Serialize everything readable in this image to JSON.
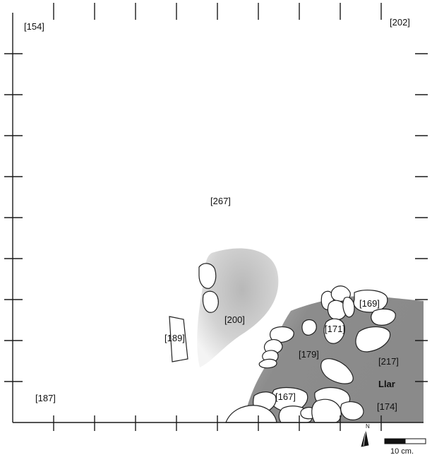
{
  "labels": {
    "ue154": "[154]",
    "ue202": "[202]",
    "ue267": "[267]",
    "ue200": "[200]",
    "ue189": "[189]",
    "ue187": "[187]",
    "ue169": "[169]",
    "ue171": "[171]",
    "ue179": "[179]",
    "ue217": "[217]",
    "ue167": "[167]",
    "ue174": "[174]",
    "llar": "Llar"
  },
  "scale_bar": {
    "label": "10 cm."
  },
  "north_arrow": {
    "icon": "north-arrow-icon",
    "label": "N"
  },
  "colors": {
    "frame": "#1a1a1a",
    "hearth_fill": "#8f8f8f",
    "ash_fill": "#c8c8c8",
    "stone_fill": "#ffffff",
    "stone_stroke": "#222222"
  }
}
